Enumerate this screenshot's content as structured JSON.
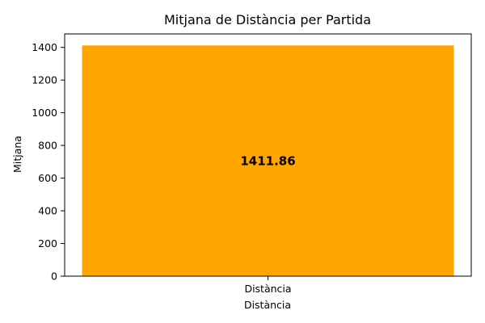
{
  "chart_data": {
    "type": "bar",
    "title": "Mitjana de Distància per Partida",
    "xlabel": "Distància",
    "ylabel": "Mitjana",
    "categories": [
      "Distància"
    ],
    "values": [
      1411.86
    ],
    "value_labels": [
      "1411.86"
    ],
    "ylim": [
      0,
      1482.45
    ],
    "yticks": [
      0,
      200,
      400,
      600,
      800,
      1000,
      1200,
      1400
    ],
    "bar_color": "#FFA500",
    "grid": false,
    "legend": "none"
  }
}
